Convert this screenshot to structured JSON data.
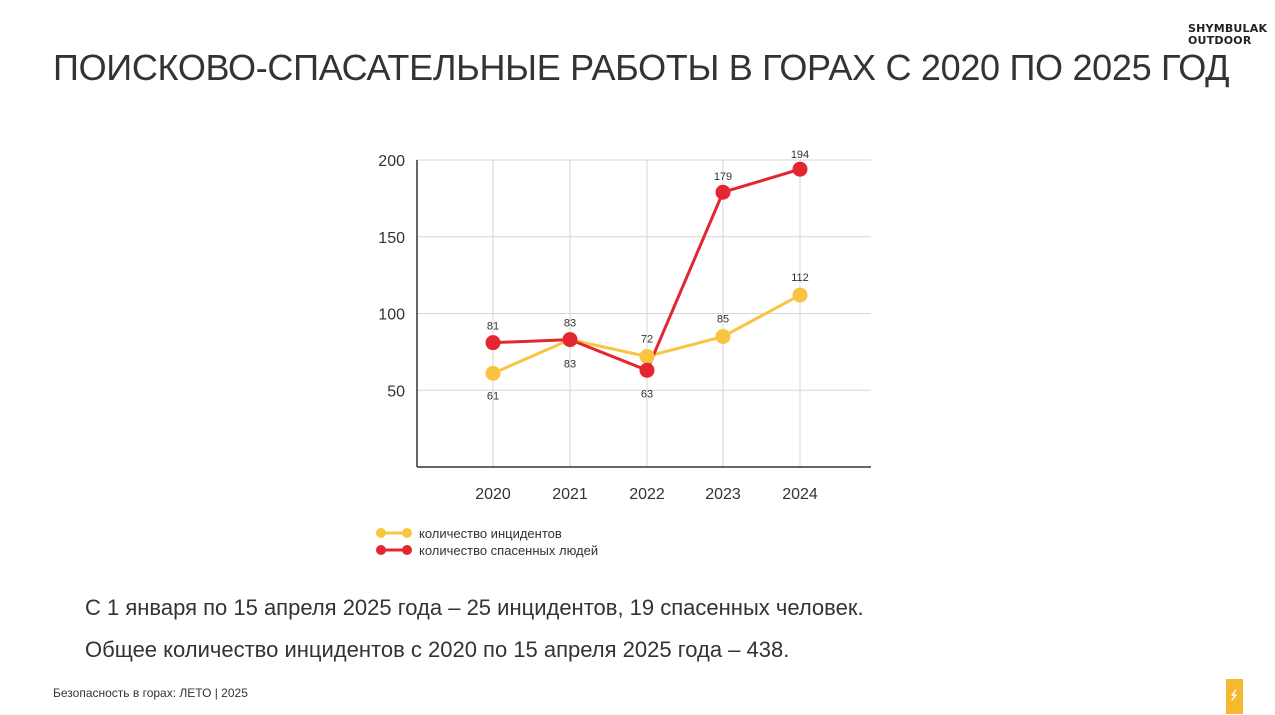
{
  "brand": {
    "line1": "SHYMBULAK",
    "line2": "OUTDOOR"
  },
  "title": "ПОИСКОВО-СПАСАТЕЛЬНЫЕ РАБОТЫ В ГОРАХ С 2020 ПО 2025 ГОД",
  "summary": {
    "line1": "С 1 января по 15 апреля 2025 года – 25 инцидентов, 19 спасенных человек.",
    "line2": "Общее количество инцидентов с 2020 по 15 апреля 2025 года – 438."
  },
  "footer": "Безопасность в горах: ЛЕТО | 2025",
  "colors": {
    "incidents": "#f9c540",
    "rescued": "#e32630",
    "text": "#333333",
    "grid": "#d6d6d6"
  },
  "chart_data": {
    "type": "line",
    "categories": [
      "2020",
      "2021",
      "2022",
      "2023",
      "2024"
    ],
    "ylim": [
      0,
      200
    ],
    "yticks": [
      50,
      100,
      150,
      200
    ],
    "grid": true,
    "legend_position": "bottom-left",
    "series": [
      {
        "name": "количество инцидентов",
        "values": [
          61,
          83,
          72,
          85,
          112
        ],
        "color": "#f9c540",
        "label_values": [
          "61",
          "83",
          "72",
          "85",
          "112"
        ]
      },
      {
        "name": "количество спасенных людей",
        "values": [
          81,
          83,
          63,
          179,
          194
        ],
        "color": "#e32630",
        "label_values": [
          "81",
          "83",
          "63",
          "179",
          "194"
        ]
      }
    ]
  }
}
